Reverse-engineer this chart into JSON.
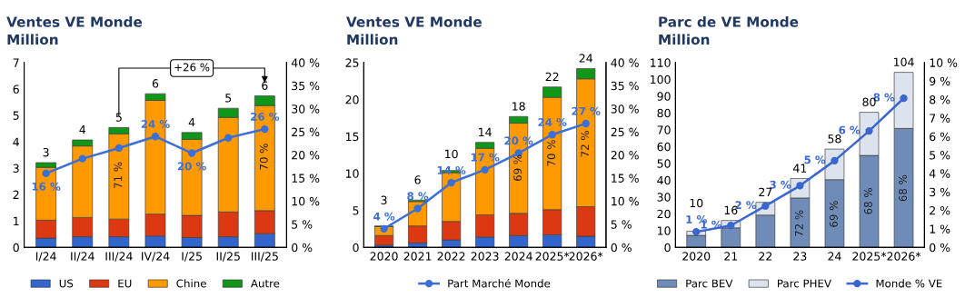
{
  "chart_data": [
    {
      "type": "bar",
      "title": "Ventes VE Monde",
      "subtitle": "Million",
      "stacked": true,
      "legend": "bottom",
      "categories": [
        "I/24",
        "II/24",
        "III/24",
        "IV/24",
        "I/25",
        "II/25",
        "III/25"
      ],
      "ylim": [
        0,
        7
      ],
      "yticks": [
        0,
        1,
        2,
        3,
        4,
        5,
        6,
        7
      ],
      "y2lim": [
        0,
        40
      ],
      "y2ticks": [
        {
          "value": 0,
          "label": "0 %"
        },
        {
          "value": 5,
          "label": "5 %"
        },
        {
          "value": 10,
          "label": "10 %"
        },
        {
          "value": 15,
          "label": "15 %"
        },
        {
          "value": 20,
          "label": "20 %"
        },
        {
          "value": 25,
          "label": "25 %"
        },
        {
          "value": 30,
          "label": "30 %"
        },
        {
          "value": 35,
          "label": "35 %"
        },
        {
          "value": 40,
          "label": "40 %"
        }
      ],
      "marker": "circle",
      "series": [
        {
          "name": "US",
          "color": "#3366cc",
          "values": [
            0.35,
            0.4,
            0.4,
            0.43,
            0.37,
            0.4,
            0.52
          ]
        },
        {
          "name": "EU",
          "color": "#dc3912",
          "values": [
            0.68,
            0.73,
            0.67,
            0.83,
            0.84,
            0.94,
            0.87
          ]
        },
        {
          "name": "Chine",
          "color": "#ff9900",
          "values": [
            2.0,
            2.71,
            3.23,
            4.31,
            2.88,
            3.58,
            3.98
          ]
        },
        {
          "name": "Autre",
          "color": "#109618",
          "values": [
            0.18,
            0.23,
            0.24,
            0.25,
            0.26,
            0.35,
            0.37
          ]
        },
        {
          "type": "line",
          "axis": "y2",
          "color": "#3b6fd8",
          "values": [
            16.0,
            19.2,
            21.5,
            24.0,
            20.4,
            23.7,
            25.6
          ],
          "value_labels": [
            "16 %",
            null,
            null,
            "24 %",
            "20 %",
            null,
            "26 %"
          ]
        }
      ],
      "totals": [
        "3",
        "4",
        "5",
        "6",
        "4",
        "5",
        "6"
      ],
      "annotations": [
        "+26 %",
        "71 %",
        "70 %"
      ]
    },
    {
      "type": "bar",
      "title": "Ventes VE Monde",
      "subtitle": "Million",
      "stacked": true,
      "legend": "bottom",
      "categories": [
        "2020",
        "2021",
        "2022",
        "2023",
        "2024",
        "2025*",
        "2026*"
      ],
      "ylim": [
        0,
        25
      ],
      "yticks": [
        0,
        5,
        10,
        15,
        20,
        25
      ],
      "y2lim": [
        0,
        40
      ],
      "y2ticks": [
        {
          "value": 0,
          "label": "0 %"
        },
        {
          "value": 5,
          "label": "5 %"
        },
        {
          "value": 10,
          "label": "10 %"
        },
        {
          "value": 15,
          "label": "15 %"
        },
        {
          "value": 20,
          "label": "20 %"
        },
        {
          "value": 25,
          "label": "25 %"
        },
        {
          "value": 30,
          "label": "30 %"
        },
        {
          "value": 35,
          "label": "35 %"
        },
        {
          "value": 40,
          "label": "40 %"
        }
      ],
      "marker": "circle",
      "series": [
        {
          "color": "#3366cc",
          "values": [
            0.3,
            0.6,
            1.0,
            1.4,
            1.6,
            1.7,
            1.5
          ]
        },
        {
          "color": "#dc3912",
          "values": [
            1.3,
            2.3,
            2.5,
            3.0,
            3.0,
            3.4,
            4.0
          ]
        },
        {
          "color": "#ff9900",
          "values": [
            1.2,
            3.3,
            6.6,
            9.0,
            12.2,
            15.2,
            17.3
          ]
        },
        {
          "color": "#109618",
          "values": [
            0.1,
            0.2,
            0.3,
            0.8,
            0.9,
            1.4,
            1.4
          ]
        },
        {
          "type": "line",
          "axis": "y2",
          "name": "Part Marché Monde",
          "color": "#3b6fd8",
          "values": [
            4.0,
            8.4,
            14.0,
            16.8,
            20.4,
            24.4,
            26.8
          ],
          "value_labels": [
            "4 %",
            "8 %",
            "14 %",
            "17 %",
            "20 %",
            "24 %",
            "27 %"
          ]
        }
      ],
      "totals": [
        "3",
        "6",
        "10",
        "14",
        "18",
        "22",
        "24"
      ],
      "annotations": [
        "69 %",
        "70 %",
        "72 %"
      ]
    },
    {
      "type": "bar",
      "title": "Parc de VE Monde",
      "subtitle": "Million",
      "stacked": true,
      "legend": "bottom",
      "categories": [
        "2020",
        "21",
        "22",
        "23",
        "24",
        "2025*",
        "2026*"
      ],
      "ylim": [
        0,
        110
      ],
      "yticks": [
        0,
        10,
        20,
        30,
        40,
        50,
        60,
        70,
        80,
        90,
        100,
        110
      ],
      "y2lim": [
        0,
        10
      ],
      "y2ticks": [
        {
          "value": 0,
          "label": "0 %"
        },
        {
          "value": 1,
          "label": "1 %"
        },
        {
          "value": 2,
          "label": "2 %"
        },
        {
          "value": 3,
          "label": "3 %"
        },
        {
          "value": 4,
          "label": "4 %"
        },
        {
          "value": 5,
          "label": "5 %"
        },
        {
          "value": 6,
          "label": "6 %"
        },
        {
          "value": 7,
          "label": "7 %"
        },
        {
          "value": 8,
          "label": "8 %"
        },
        {
          "value": 9,
          "label": "9 %"
        },
        {
          "value": 10,
          "label": "10 %"
        }
      ],
      "marker": "circle",
      "series": [
        {
          "name": "Parc BEV",
          "color": "#6f8cb8",
          "values": [
            7.1,
            11.6,
            19.2,
            29.4,
            40.3,
            54.7,
            70.8
          ]
        },
        {
          "name": "Parc PHEV",
          "color": "#dde3ee",
          "values": [
            2.5,
            4.4,
            7.6,
            11.6,
            18.2,
            25.7,
            33.4
          ]
        },
        {
          "type": "line",
          "axis": "y2",
          "name": "Monde % VE",
          "color": "#3a66d0",
          "values": [
            0.84,
            1.18,
            2.24,
            3.34,
            4.69,
            6.3,
            8.07
          ],
          "value_labels": [
            "1 %",
            "1 %",
            "2 %",
            "3 %",
            "5 %",
            "6 %",
            "8 %"
          ]
        }
      ],
      "totals": [
        "10",
        "16",
        "27",
        "41",
        "58",
        "80",
        "104"
      ],
      "annotations": [
        "72 %",
        "69 %",
        "68 %",
        "68 %"
      ]
    }
  ]
}
